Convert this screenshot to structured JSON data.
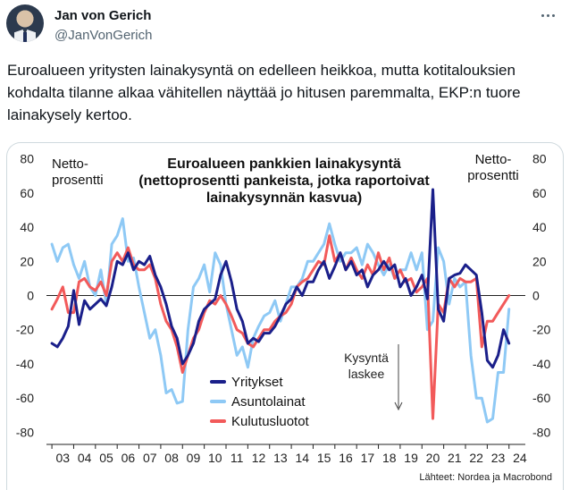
{
  "tweet": {
    "author_name": "Jan von Gerich",
    "author_handle": "@JanVonGerich",
    "text": "Euroalueen yritysten lainakysyntä on edelleen heikkoa, mutta kotitalouksien kohdalta tilanne alkaa vähitellen näyttää jo hitusen paremmalta, EKP:n tuore lainakysely kertoo.",
    "icons": {
      "more": "more-options-icon",
      "avatar": "profile-photo"
    }
  },
  "chart_data": {
    "type": "line",
    "title_lines": [
      "Euroalueen pankkien lainakysyntä",
      "(nettoprosentti pankeista, jotka raportoivat",
      "lainakysynnän kasvua)"
    ],
    "y_label_left": [
      "Netto-",
      "prosentti"
    ],
    "y_label_right": [
      "Netto-",
      "prosentti"
    ],
    "ylim": [
      -85,
      85
    ],
    "yticks": [
      80,
      60,
      40,
      20,
      0,
      -20,
      -40,
      -60,
      -80
    ],
    "xlim": [
      2002.75,
      2024.75
    ],
    "xticks": [
      "03",
      "04",
      "05",
      "06",
      "07",
      "08",
      "09",
      "10",
      "11",
      "12",
      "13",
      "14",
      "15",
      "16",
      "17",
      "18",
      "19",
      "20",
      "21",
      "22",
      "23",
      "24"
    ],
    "annotation": [
      "Kysyntä",
      "laskee"
    ],
    "source": "Lähteet: Nordea ja Macrobond",
    "grid": false,
    "legend_position": "bottom-left",
    "series": [
      {
        "name": "Yritykset",
        "color": "#1a1f8a",
        "points": [
          [
            2003.0,
            -28
          ],
          [
            2003.25,
            -30
          ],
          [
            2003.5,
            -25
          ],
          [
            2003.75,
            -18
          ],
          [
            2004.0,
            3
          ],
          [
            2004.25,
            -17
          ],
          [
            2004.5,
            -3
          ],
          [
            2004.75,
            -8
          ],
          [
            2005.0,
            -5
          ],
          [
            2005.25,
            -2
          ],
          [
            2005.5,
            -6
          ],
          [
            2005.75,
            5
          ],
          [
            2006.0,
            20
          ],
          [
            2006.25,
            18
          ],
          [
            2006.5,
            25
          ],
          [
            2006.75,
            15
          ],
          [
            2007.0,
            20
          ],
          [
            2007.25,
            18
          ],
          [
            2007.5,
            23
          ],
          [
            2007.75,
            12
          ],
          [
            2008.0,
            5
          ],
          [
            2008.25,
            -5
          ],
          [
            2008.5,
            -18
          ],
          [
            2008.75,
            -25
          ],
          [
            2009.0,
            -40
          ],
          [
            2009.25,
            -35
          ],
          [
            2009.5,
            -28
          ],
          [
            2009.75,
            -15
          ],
          [
            2010.0,
            -8
          ],
          [
            2010.25,
            -5
          ],
          [
            2010.5,
            -2
          ],
          [
            2010.75,
            12
          ],
          [
            2011.0,
            20
          ],
          [
            2011.25,
            8
          ],
          [
            2011.5,
            -8
          ],
          [
            2011.75,
            -15
          ],
          [
            2012.0,
            -28
          ],
          [
            2012.25,
            -25
          ],
          [
            2012.5,
            -27
          ],
          [
            2012.75,
            -22
          ],
          [
            2013.0,
            -22
          ],
          [
            2013.25,
            -18
          ],
          [
            2013.5,
            -12
          ],
          [
            2013.75,
            -5
          ],
          [
            2014.0,
            -2
          ],
          [
            2014.25,
            5
          ],
          [
            2014.5,
            0
          ],
          [
            2014.75,
            8
          ],
          [
            2015.0,
            8
          ],
          [
            2015.25,
            15
          ],
          [
            2015.5,
            20
          ],
          [
            2015.75,
            10
          ],
          [
            2016.0,
            17
          ],
          [
            2016.25,
            25
          ],
          [
            2016.5,
            15
          ],
          [
            2016.75,
            20
          ],
          [
            2017.0,
            12
          ],
          [
            2017.25,
            15
          ],
          [
            2017.5,
            5
          ],
          [
            2017.75,
            12
          ],
          [
            2018.0,
            15
          ],
          [
            2018.25,
            20
          ],
          [
            2018.5,
            15
          ],
          [
            2018.75,
            18
          ],
          [
            2019.0,
            5
          ],
          [
            2019.25,
            10
          ],
          [
            2019.5,
            0
          ],
          [
            2019.75,
            5
          ],
          [
            2020.0,
            12
          ],
          [
            2020.25,
            -2
          ],
          [
            2020.5,
            62
          ],
          [
            2020.75,
            -8
          ],
          [
            2021.0,
            -15
          ],
          [
            2021.25,
            10
          ],
          [
            2021.5,
            12
          ],
          [
            2021.75,
            13
          ],
          [
            2022.0,
            18
          ],
          [
            2022.25,
            15
          ],
          [
            2022.5,
            12
          ],
          [
            2022.75,
            -10
          ],
          [
            2023.0,
            -38
          ],
          [
            2023.25,
            -42
          ],
          [
            2023.5,
            -35
          ],
          [
            2023.75,
            -20
          ],
          [
            2024.0,
            -28
          ]
        ]
      },
      {
        "name": "Asuntolainat",
        "color": "#8ec9f5",
        "points": [
          [
            2003.0,
            30
          ],
          [
            2003.25,
            20
          ],
          [
            2003.5,
            28
          ],
          [
            2003.75,
            30
          ],
          [
            2004.0,
            18
          ],
          [
            2004.25,
            10
          ],
          [
            2004.5,
            20
          ],
          [
            2004.75,
            5
          ],
          [
            2005.0,
            0
          ],
          [
            2005.25,
            15
          ],
          [
            2005.5,
            -5
          ],
          [
            2005.75,
            30
          ],
          [
            2006.0,
            35
          ],
          [
            2006.25,
            45
          ],
          [
            2006.5,
            20
          ],
          [
            2006.75,
            22
          ],
          [
            2007.0,
            5
          ],
          [
            2007.25,
            -10
          ],
          [
            2007.5,
            -25
          ],
          [
            2007.75,
            -20
          ],
          [
            2008.0,
            -35
          ],
          [
            2008.25,
            -57
          ],
          [
            2008.5,
            -55
          ],
          [
            2008.75,
            -63
          ],
          [
            2009.0,
            -62
          ],
          [
            2009.25,
            -20
          ],
          [
            2009.5,
            5
          ],
          [
            2009.75,
            10
          ],
          [
            2010.0,
            18
          ],
          [
            2010.25,
            2
          ],
          [
            2010.5,
            25
          ],
          [
            2010.75,
            18
          ],
          [
            2011.0,
            -5
          ],
          [
            2011.25,
            -20
          ],
          [
            2011.5,
            -35
          ],
          [
            2011.75,
            -30
          ],
          [
            2012.0,
            -42
          ],
          [
            2012.25,
            -25
          ],
          [
            2012.5,
            -18
          ],
          [
            2012.75,
            -12
          ],
          [
            2013.0,
            -10
          ],
          [
            2013.25,
            -3
          ],
          [
            2013.5,
            -15
          ],
          [
            2013.75,
            -5
          ],
          [
            2014.0,
            5
          ],
          [
            2014.25,
            5
          ],
          [
            2014.5,
            10
          ],
          [
            2014.75,
            20
          ],
          [
            2015.0,
            20
          ],
          [
            2015.25,
            25
          ],
          [
            2015.5,
            30
          ],
          [
            2015.75,
            42
          ],
          [
            2016.0,
            30
          ],
          [
            2016.25,
            20
          ],
          [
            2016.5,
            25
          ],
          [
            2016.75,
            25
          ],
          [
            2017.0,
            28
          ],
          [
            2017.25,
            18
          ],
          [
            2017.5,
            30
          ],
          [
            2017.75,
            25
          ],
          [
            2018.0,
            18
          ],
          [
            2018.25,
            12
          ],
          [
            2018.5,
            18
          ],
          [
            2018.75,
            10
          ],
          [
            2019.0,
            15
          ],
          [
            2019.25,
            15
          ],
          [
            2019.5,
            25
          ],
          [
            2019.75,
            15
          ],
          [
            2020.0,
            25
          ],
          [
            2020.25,
            -20
          ],
          [
            2020.5,
            -15
          ],
          [
            2020.75,
            28
          ],
          [
            2021.0,
            20
          ],
          [
            2021.25,
            -5
          ],
          [
            2021.5,
            10
          ],
          [
            2021.75,
            5
          ],
          [
            2022.0,
            8
          ],
          [
            2022.25,
            -35
          ],
          [
            2022.5,
            -60
          ],
          [
            2022.75,
            -60
          ],
          [
            2023.0,
            -74
          ],
          [
            2023.25,
            -72
          ],
          [
            2023.5,
            -45
          ],
          [
            2023.75,
            -45
          ],
          [
            2024.0,
            -8
          ]
        ]
      },
      {
        "name": "Kulutusluotot",
        "color": "#f25a5a",
        "points": [
          [
            2003.0,
            -8
          ],
          [
            2003.25,
            -2
          ],
          [
            2003.5,
            5
          ],
          [
            2003.75,
            -10
          ],
          [
            2004.0,
            -10
          ],
          [
            2004.25,
            8
          ],
          [
            2004.5,
            10
          ],
          [
            2004.75,
            5
          ],
          [
            2005.0,
            3
          ],
          [
            2005.25,
            8
          ],
          [
            2005.5,
            0
          ],
          [
            2005.75,
            20
          ],
          [
            2006.0,
            25
          ],
          [
            2006.25,
            20
          ],
          [
            2006.5,
            28
          ],
          [
            2006.75,
            18
          ],
          [
            2007.0,
            15
          ],
          [
            2007.25,
            15
          ],
          [
            2007.5,
            18
          ],
          [
            2007.75,
            10
          ],
          [
            2008.0,
            -5
          ],
          [
            2008.25,
            -15
          ],
          [
            2008.5,
            -20
          ],
          [
            2008.75,
            -30
          ],
          [
            2009.0,
            -45
          ],
          [
            2009.25,
            -35
          ],
          [
            2009.5,
            -25
          ],
          [
            2009.75,
            -20
          ],
          [
            2010.0,
            -10
          ],
          [
            2010.25,
            -3
          ],
          [
            2010.5,
            -5
          ],
          [
            2010.75,
            0
          ],
          [
            2011.0,
            -5
          ],
          [
            2011.25,
            -12
          ],
          [
            2011.5,
            -20
          ],
          [
            2011.75,
            -22
          ],
          [
            2012.0,
            -28
          ],
          [
            2012.25,
            -30
          ],
          [
            2012.5,
            -25
          ],
          [
            2012.75,
            -20
          ],
          [
            2013.0,
            -20
          ],
          [
            2013.25,
            -15
          ],
          [
            2013.5,
            -12
          ],
          [
            2013.75,
            -10
          ],
          [
            2014.0,
            -5
          ],
          [
            2014.25,
            5
          ],
          [
            2014.5,
            8
          ],
          [
            2014.75,
            10
          ],
          [
            2015.0,
            15
          ],
          [
            2015.25,
            20
          ],
          [
            2015.5,
            18
          ],
          [
            2015.75,
            35
          ],
          [
            2016.0,
            20
          ],
          [
            2016.25,
            25
          ],
          [
            2016.5,
            15
          ],
          [
            2016.75,
            22
          ],
          [
            2017.0,
            15
          ],
          [
            2017.25,
            10
          ],
          [
            2017.5,
            18
          ],
          [
            2017.75,
            12
          ],
          [
            2018.0,
            25
          ],
          [
            2018.25,
            15
          ],
          [
            2018.5,
            22
          ],
          [
            2018.75,
            10
          ],
          [
            2019.0,
            15
          ],
          [
            2019.25,
            8
          ],
          [
            2019.5,
            10
          ],
          [
            2019.75,
            2
          ],
          [
            2020.0,
            5
          ],
          [
            2020.25,
            10
          ],
          [
            2020.5,
            -72
          ],
          [
            2020.75,
            -5
          ],
          [
            2021.0,
            -10
          ],
          [
            2021.25,
            10
          ],
          [
            2021.5,
            5
          ],
          [
            2021.75,
            10
          ],
          [
            2022.0,
            8
          ],
          [
            2022.25,
            8
          ],
          [
            2022.5,
            10
          ],
          [
            2022.75,
            -30
          ],
          [
            2023.0,
            -15
          ],
          [
            2023.25,
            -15
          ],
          [
            2023.5,
            -10
          ],
          [
            2023.75,
            -5
          ],
          [
            2024.0,
            0
          ]
        ]
      }
    ]
  }
}
